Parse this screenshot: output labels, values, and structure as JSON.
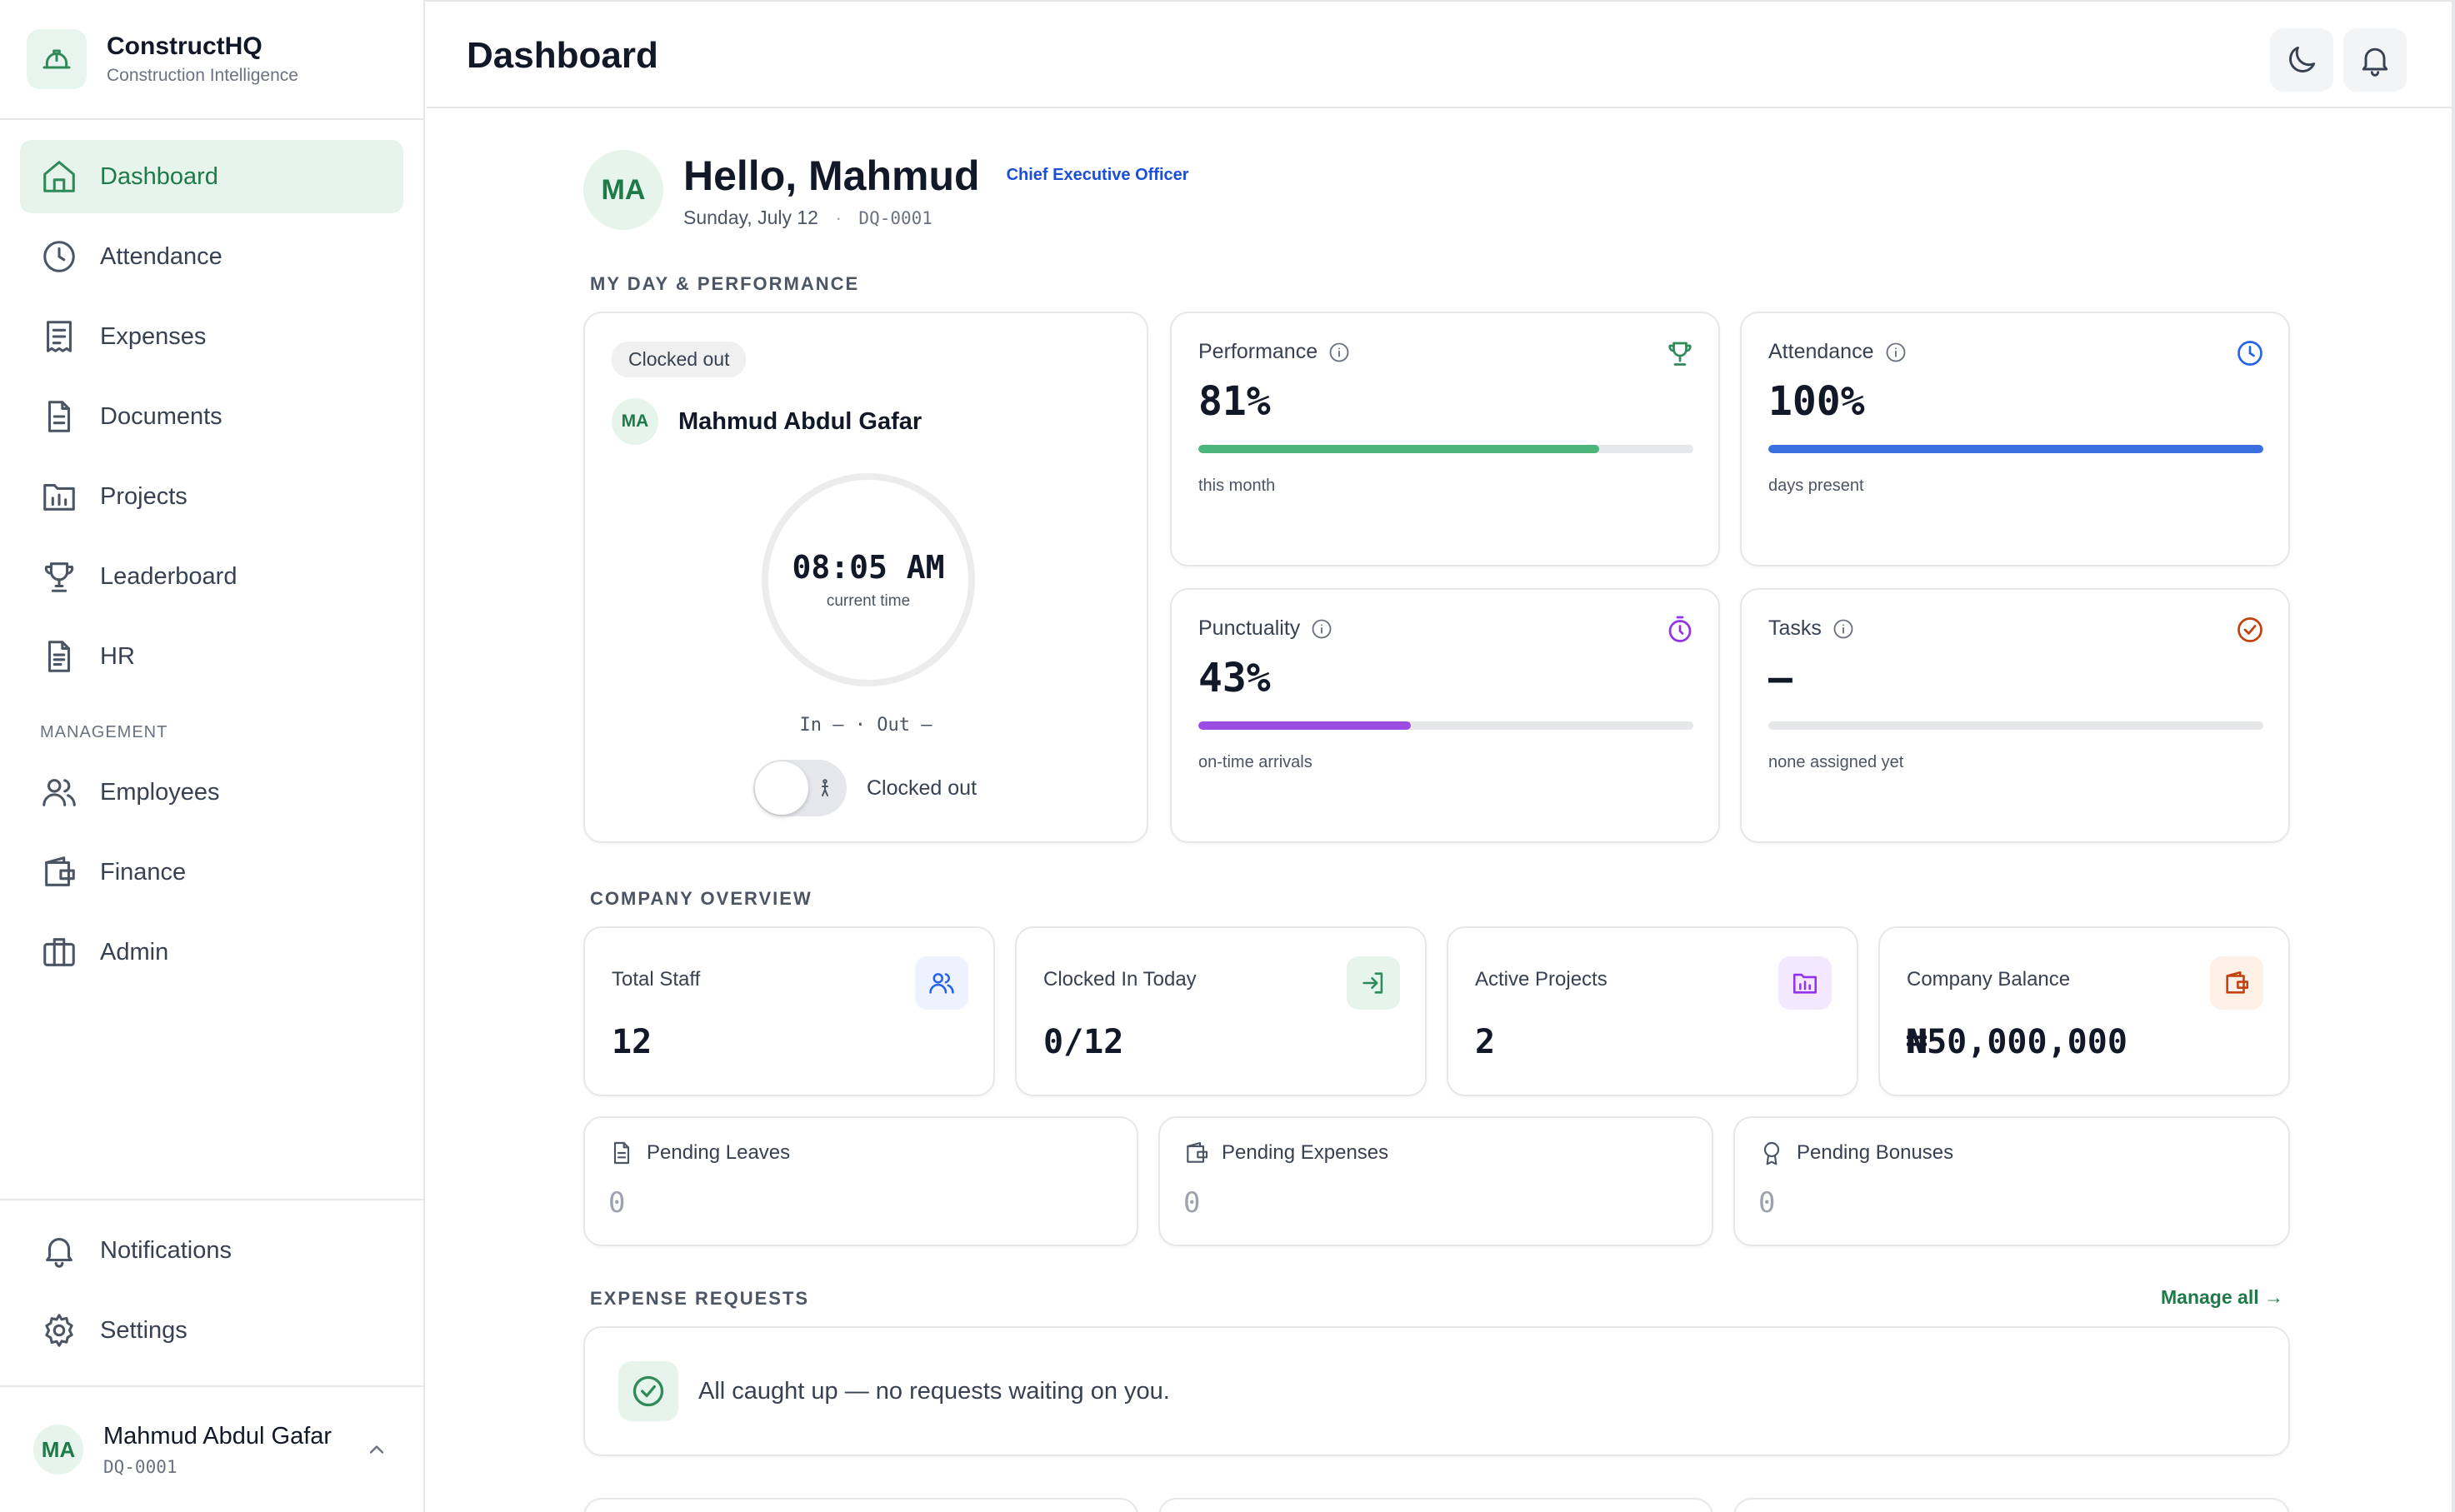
{
  "brand": {
    "name": "ConstructHQ",
    "tagline": "Construction Intelligence"
  },
  "sidebar": {
    "items": [
      {
        "label": "Dashboard",
        "icon": "home-icon",
        "active": true
      },
      {
        "label": "Attendance",
        "icon": "clock-icon"
      },
      {
        "label": "Expenses",
        "icon": "receipt-icon"
      },
      {
        "label": "Documents",
        "icon": "document-icon"
      },
      {
        "label": "Projects",
        "icon": "folder-chart-icon"
      },
      {
        "label": "Leaderboard",
        "icon": "trophy-icon"
      },
      {
        "label": "HR",
        "icon": "file-icon"
      }
    ],
    "management_label": "MANAGEMENT",
    "management_items": [
      {
        "label": "Employees",
        "icon": "users-icon"
      },
      {
        "label": "Finance",
        "icon": "wallet-icon"
      },
      {
        "label": "Admin",
        "icon": "briefcase-icon"
      }
    ],
    "bottom_items": [
      {
        "label": "Notifications",
        "icon": "bell-icon"
      },
      {
        "label": "Settings",
        "icon": "gear-icon"
      }
    ],
    "user": {
      "initials": "MA",
      "name": "Mahmud Abdul Gafar",
      "id": "DQ-0001"
    }
  },
  "header": {
    "title": "Dashboard"
  },
  "greeting": {
    "initials": "MA",
    "hello": "Hello, Mahmud",
    "role": "Chief Executive Officer",
    "date": "Sunday, July 12",
    "separator": "·",
    "id": "DQ-0001"
  },
  "sections": {
    "my_day": "MY DAY & PERFORMANCE",
    "company": "COMPANY OVERVIEW",
    "expenses": "EXPENSE REQUESTS"
  },
  "clock": {
    "status_pill": "Clocked out",
    "initials": "MA",
    "name": "Mahmud Abdul Gafar",
    "time": "08:05 AM",
    "time_caption": "current time",
    "in_out": "In — · Out —",
    "toggle_label": "Clocked out"
  },
  "stats": {
    "performance": {
      "title": "Performance",
      "value": "81%",
      "progress": 0.81,
      "foot": "this month",
      "color": "#4cb67a"
    },
    "attendance": {
      "title": "Attendance",
      "value": "100%",
      "progress": 1.0,
      "foot": "days present",
      "color": "#3b6fe0"
    },
    "punctuality": {
      "title": "Punctuality",
      "value": "43%",
      "progress": 0.43,
      "foot": "on-time arrivals",
      "color": "#9a4de0"
    },
    "tasks": {
      "title": "Tasks",
      "value": "–",
      "progress": 0,
      "foot": "none assigned yet",
      "color": "#d97706"
    }
  },
  "overview": {
    "total_staff": {
      "title": "Total Staff",
      "value": "12"
    },
    "clocked_in": {
      "title": "Clocked In Today",
      "value": "0/12"
    },
    "active_projects": {
      "title": "Active Projects",
      "value": "2"
    },
    "balance": {
      "title": "Company Balance",
      "value": "₦50,000,000"
    }
  },
  "pending": {
    "leaves": {
      "title": "Pending Leaves",
      "value": "0"
    },
    "expenses": {
      "title": "Pending Expenses",
      "value": "0"
    },
    "bonuses": {
      "title": "Pending Bonuses",
      "value": "0"
    }
  },
  "expense_requests": {
    "manage_label": "Manage all →",
    "empty_message": "All caught up — no requests waiting on you."
  }
}
